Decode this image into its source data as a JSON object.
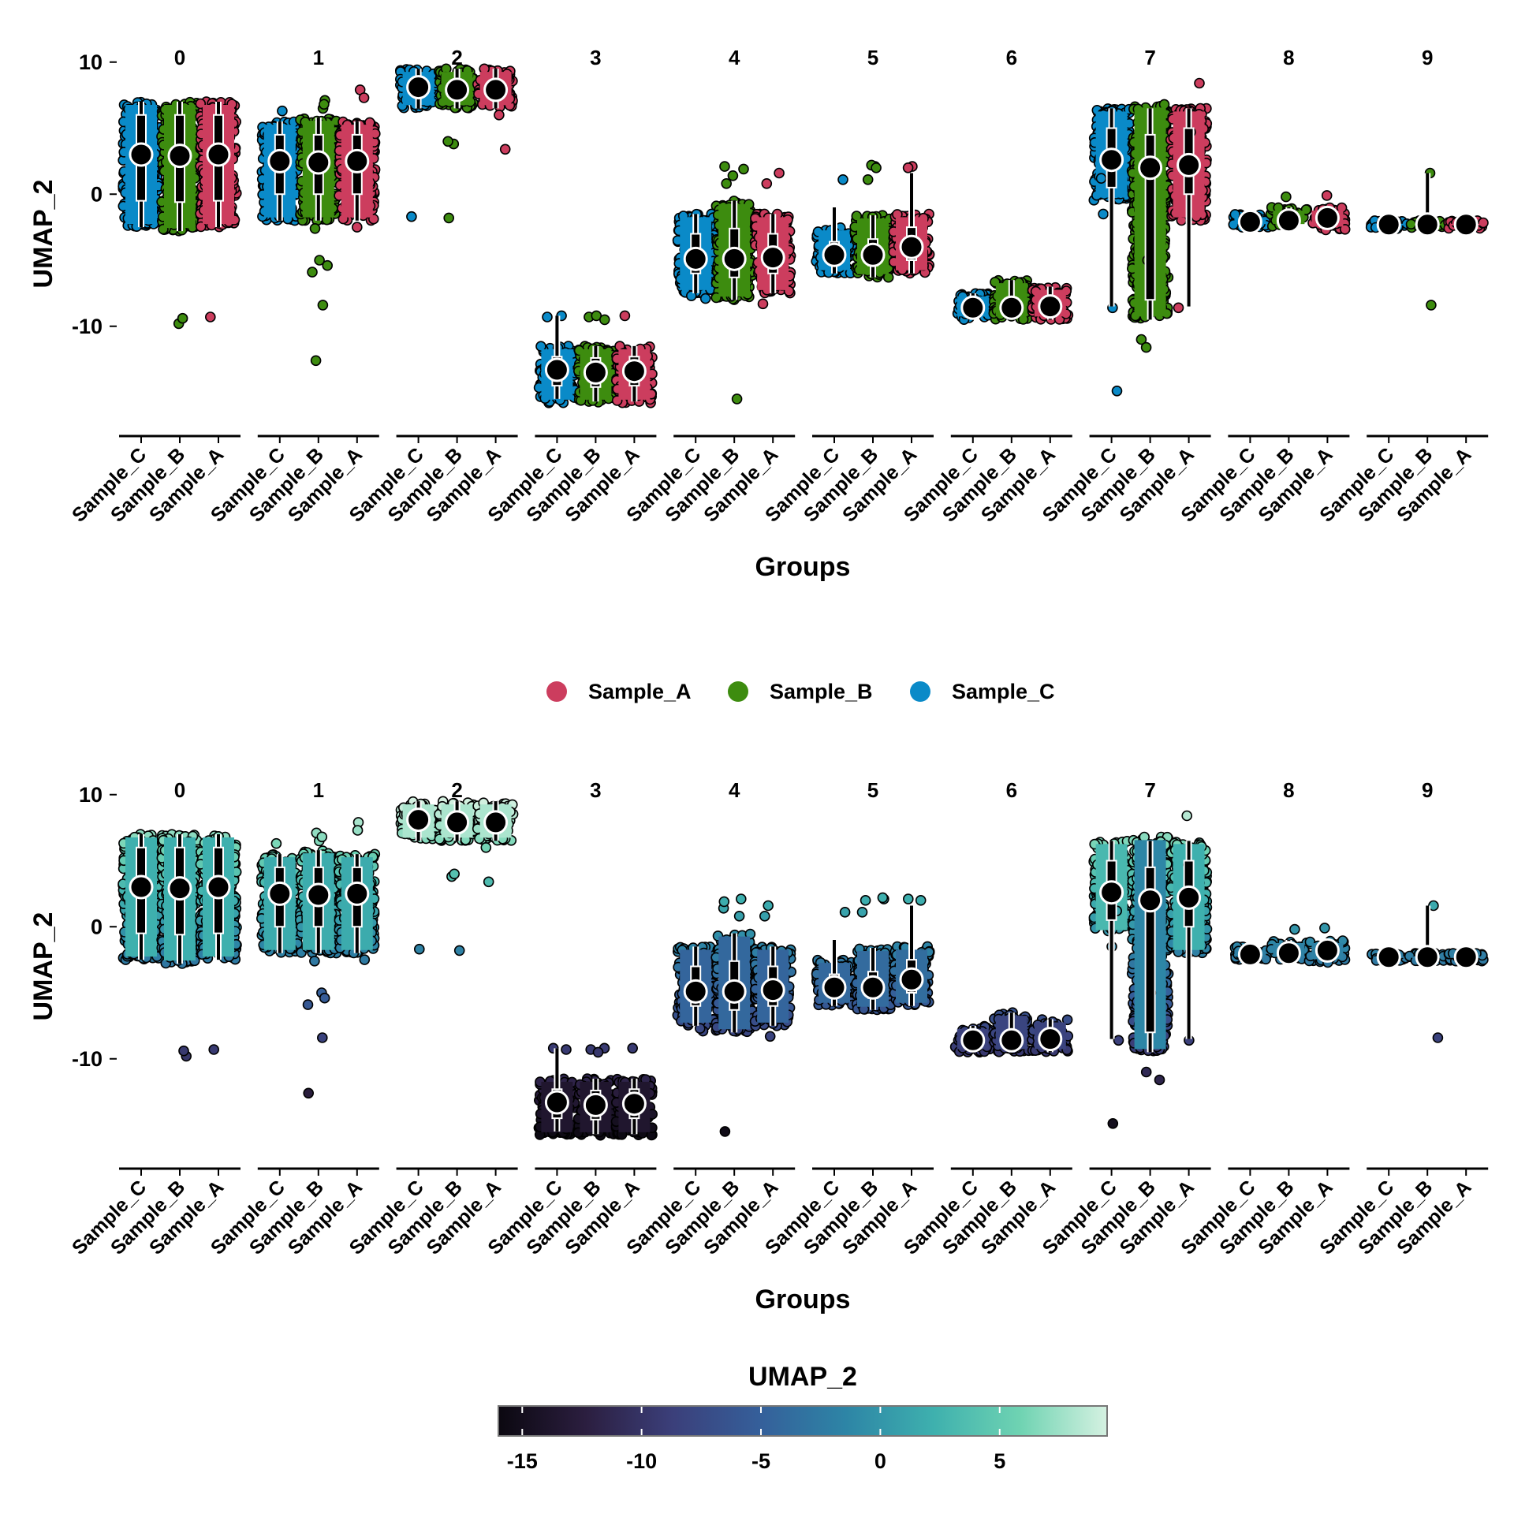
{
  "legend": {
    "items": [
      {
        "label": "Sample_A",
        "color": "#CC3D5E"
      },
      {
        "label": "Sample_B",
        "color": "#3D8C0F"
      },
      {
        "label": "Sample_C",
        "color": "#0A8AC8"
      }
    ]
  },
  "colorbar": {
    "title": "UMAP_2",
    "ticks": [
      "-15",
      "-10",
      "-5",
      "0",
      "5"
    ],
    "tick_values": [
      -15,
      -10,
      -5,
      0,
      5
    ],
    "range": [
      -16,
      9.5
    ],
    "colors": [
      "#0b0810",
      "#2b1e3f",
      "#3b3f7a",
      "#355f9a",
      "#2d85a6",
      "#3eb0ae",
      "#6fd3b2",
      "#d5f1e1"
    ]
  },
  "chart_data": [
    {
      "type": "violin-jitter",
      "panel": "top",
      "fill_mode": "sample",
      "xlabel": "Groups",
      "ylabel": "UMAP_2",
      "yticks": [
        "10",
        "0",
        "-10"
      ],
      "ytick_values": [
        10,
        0,
        -10
      ],
      "ylim": [
        -17,
        11
      ],
      "facets": [
        "0",
        "1",
        "2",
        "3",
        "4",
        "5",
        "6",
        "7",
        "8",
        "9"
      ],
      "categories": [
        "Sample_C",
        "Sample_B",
        "Sample_A"
      ]
    },
    {
      "type": "violin-jitter",
      "panel": "bottom",
      "fill_mode": "value",
      "xlabel": "Groups",
      "ylabel": "UMAP_2",
      "yticks": [
        "10",
        "0",
        "-10"
      ],
      "ytick_values": [
        10,
        0,
        -10
      ],
      "ylim": [
        -17,
        11
      ],
      "facets": [
        "0",
        "1",
        "2",
        "3",
        "4",
        "5",
        "6",
        "7",
        "8",
        "9"
      ],
      "categories": [
        "Sample_C",
        "Sample_B",
        "Sample_A"
      ]
    }
  ],
  "groups": [
    {
      "facet": "0",
      "boxes": [
        {
          "sample": "Sample_C",
          "lo": -2.5,
          "hi": 7.0,
          "median": 3.0,
          "q1": -0.5,
          "q3": 6.0,
          "wlo": -2.5,
          "whi": 7.0,
          "outliers": []
        },
        {
          "sample": "Sample_B",
          "lo": -2.8,
          "hi": 7.0,
          "median": 2.9,
          "q1": -0.6,
          "q3": 6.0,
          "wlo": -2.8,
          "whi": 7.0,
          "outliers": [
            -9.8,
            -9.4
          ]
        },
        {
          "sample": "Sample_A",
          "lo": -2.5,
          "hi": 7.0,
          "median": 3.0,
          "q1": -0.5,
          "q3": 6.0,
          "wlo": -2.5,
          "whi": 7.0,
          "outliers": [
            -9.3
          ]
        }
      ]
    },
    {
      "facet": "1",
      "boxes": [
        {
          "sample": "Sample_C",
          "lo": -2.0,
          "hi": 5.5,
          "median": 2.5,
          "q1": 0.0,
          "q3": 4.5,
          "wlo": -2.0,
          "whi": 5.5,
          "outliers": [
            6.3
          ]
        },
        {
          "sample": "Sample_B",
          "lo": -2.0,
          "hi": 5.8,
          "median": 2.4,
          "q1": 0.0,
          "q3": 4.5,
          "wlo": -2.0,
          "whi": 5.8,
          "outliers": [
            6.5,
            7.1,
            6.8,
            -2.6,
            -5.0,
            -5.4,
            -5.9,
            -8.4,
            -12.6
          ]
        },
        {
          "sample": "Sample_A",
          "lo": -2.0,
          "hi": 5.5,
          "median": 2.5,
          "q1": 0.0,
          "q3": 4.5,
          "wlo": -2.0,
          "whi": 5.5,
          "outliers": [
            7.9,
            7.3,
            -2.5
          ]
        }
      ]
    },
    {
      "facet": "2",
      "boxes": [
        {
          "sample": "Sample_C",
          "lo": 6.5,
          "hi": 9.5,
          "median": 8.1,
          "q1": 7.5,
          "q3": 8.8,
          "wlo": 6.5,
          "whi": 9.5,
          "outliers": [
            -1.7
          ]
        },
        {
          "sample": "Sample_B",
          "lo": 6.5,
          "hi": 9.5,
          "median": 7.9,
          "q1": 7.4,
          "q3": 8.6,
          "wlo": 6.5,
          "whi": 9.5,
          "outliers": [
            3.8,
            4.0,
            -1.8
          ]
        },
        {
          "sample": "Sample_A",
          "lo": 6.5,
          "hi": 9.5,
          "median": 7.9,
          "q1": 7.4,
          "q3": 8.6,
          "wlo": 6.5,
          "whi": 9.5,
          "outliers": [
            6.0,
            3.4
          ]
        }
      ]
    },
    {
      "facet": "3",
      "boxes": [
        {
          "sample": "Sample_C",
          "lo": -15.8,
          "hi": -11.5,
          "median": -13.3,
          "q1": -14.5,
          "q3": -12.3,
          "wlo": -15.5,
          "whi": -9.2,
          "outliers": [
            -9.3,
            -9.2
          ]
        },
        {
          "sample": "Sample_B",
          "lo": -15.8,
          "hi": -11.5,
          "median": -13.5,
          "q1": -14.6,
          "q3": -12.4,
          "wlo": -15.7,
          "whi": -11.5,
          "outliers": [
            -9.3,
            -9.2,
            -9.5
          ]
        },
        {
          "sample": "Sample_A",
          "lo": -15.8,
          "hi": -11.5,
          "median": -13.4,
          "q1": -14.5,
          "q3": -12.3,
          "wlo": -15.7,
          "whi": -11.5,
          "outliers": [
            -9.2
          ]
        }
      ]
    },
    {
      "facet": "4",
      "boxes": [
        {
          "sample": "Sample_C",
          "lo": -7.5,
          "hi": -1.5,
          "median": -4.9,
          "q1": -6.0,
          "q3": -3.0,
          "wlo": -7.5,
          "whi": -1.5,
          "outliers": [
            -7.9,
            -7.7
          ]
        },
        {
          "sample": "Sample_B",
          "lo": -8.0,
          "hi": -0.5,
          "median": -4.9,
          "q1": -6.3,
          "q3": -2.6,
          "wlo": -8.0,
          "whi": -0.5,
          "outliers": [
            1.4,
            1.9,
            2.1,
            0.8,
            -15.5
          ]
        },
        {
          "sample": "Sample_A",
          "lo": -7.5,
          "hi": -1.5,
          "median": -4.8,
          "q1": -6.0,
          "q3": -3.0,
          "wlo": -7.5,
          "whi": -1.5,
          "outliers": [
            1.6,
            0.8,
            -8.3
          ]
        }
      ]
    },
    {
      "facet": "5",
      "boxes": [
        {
          "sample": "Sample_C",
          "lo": -6.0,
          "hi": -2.5,
          "median": -4.6,
          "q1": -5.3,
          "q3": -3.6,
          "wlo": -6.0,
          "whi": -1.0,
          "outliers": [
            1.1
          ]
        },
        {
          "sample": "Sample_B",
          "lo": -6.3,
          "hi": -1.6,
          "median": -4.6,
          "q1": -5.4,
          "q3": -3.4,
          "wlo": -6.3,
          "whi": -1.6,
          "outliers": [
            2.1,
            2.2,
            2.0,
            1.1
          ]
        },
        {
          "sample": "Sample_A",
          "lo": -6.0,
          "hi": -1.5,
          "median": -4.0,
          "q1": -5.0,
          "q3": -2.5,
          "wlo": -6.0,
          "whi": 1.6,
          "outliers": [
            2.1,
            2.0
          ]
        }
      ]
    },
    {
      "facet": "6",
      "boxes": [
        {
          "sample": "Sample_C",
          "lo": -9.5,
          "hi": -7.5,
          "median": -8.6,
          "q1": -9.0,
          "q3": -8.0,
          "wlo": -9.5,
          "whi": -7.5,
          "outliers": []
        },
        {
          "sample": "Sample_B",
          "lo": -9.5,
          "hi": -6.5,
          "median": -8.6,
          "q1": -9.0,
          "q3": -8.0,
          "wlo": -9.5,
          "whi": -6.5,
          "outliers": []
        },
        {
          "sample": "Sample_A",
          "lo": -9.5,
          "hi": -7.0,
          "median": -8.5,
          "q1": -9.0,
          "q3": -8.0,
          "wlo": -9.5,
          "whi": -7.0,
          "outliers": []
        }
      ]
    },
    {
      "facet": "7",
      "boxes": [
        {
          "sample": "Sample_C",
          "lo": -0.5,
          "hi": 6.5,
          "median": 2.6,
          "q1": 0.5,
          "q3": 5.0,
          "wlo": -8.5,
          "whi": 6.5,
          "outliers": [
            -8.6,
            1.2,
            -1.5,
            -14.9
          ]
        },
        {
          "sample": "Sample_B",
          "lo": -9.5,
          "hi": 6.8,
          "median": 2.0,
          "q1": -8.0,
          "q3": 4.5,
          "wlo": -9.5,
          "whi": 6.5,
          "outliers": [
            -5.0,
            -11.0,
            -11.6
          ]
        },
        {
          "sample": "Sample_A",
          "lo": -2.0,
          "hi": 6.5,
          "median": 2.2,
          "q1": 0.0,
          "q3": 5.0,
          "wlo": -8.5,
          "whi": 6.5,
          "outliers": [
            8.4,
            4.7,
            -8.6
          ]
        }
      ]
    },
    {
      "facet": "8",
      "boxes": [
        {
          "sample": "Sample_C",
          "lo": -2.5,
          "hi": -1.5,
          "median": -2.1,
          "q1": -2.4,
          "q3": -1.8,
          "wlo": -2.5,
          "whi": -1.5,
          "outliers": []
        },
        {
          "sample": "Sample_B",
          "lo": -2.5,
          "hi": -1.0,
          "median": -2.0,
          "q1": -2.3,
          "q3": -1.6,
          "wlo": -2.5,
          "whi": -1.0,
          "outliers": [
            -0.2
          ]
        },
        {
          "sample": "Sample_A",
          "lo": -2.7,
          "hi": -1.0,
          "median": -1.8,
          "q1": -2.3,
          "q3": -1.4,
          "wlo": -2.7,
          "whi": -1.0,
          "outliers": [
            -0.1,
            -2.7
          ]
        }
      ]
    },
    {
      "facet": "9",
      "boxes": [
        {
          "sample": "Sample_C",
          "lo": -2.6,
          "hi": -2.0,
          "median": -2.3,
          "q1": -2.5,
          "q3": -2.1,
          "wlo": -2.6,
          "whi": -2.0,
          "outliers": [
            -2.5
          ]
        },
        {
          "sample": "Sample_B",
          "lo": -2.6,
          "hi": -2.0,
          "median": -2.3,
          "q1": -2.5,
          "q3": -2.1,
          "wlo": -2.6,
          "whi": 1.6,
          "outliers": [
            1.6,
            -8.4
          ]
        },
        {
          "sample": "Sample_A",
          "lo": -2.6,
          "hi": -2.0,
          "median": -2.3,
          "q1": -2.5,
          "q3": -2.1,
          "wlo": -2.6,
          "whi": -2.0,
          "outliers": []
        }
      ]
    }
  ]
}
